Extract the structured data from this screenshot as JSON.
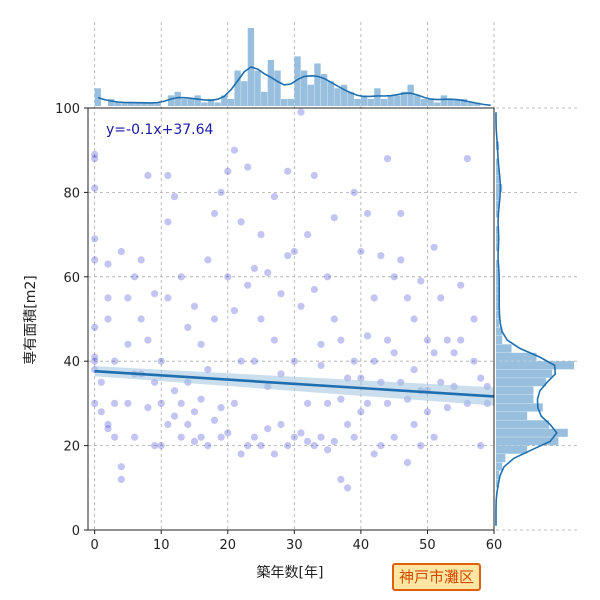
{
  "chart_data": {
    "type": "scatter",
    "xlabel": "築年数[年]",
    "ylabel": "専有面積[m2]",
    "xlim": [
      -1,
      60
    ],
    "ylim": [
      0,
      100
    ],
    "x_ticks": [
      0,
      10,
      20,
      30,
      40,
      50,
      60
    ],
    "y_ticks": [
      0,
      20,
      40,
      60,
      80,
      100
    ],
    "grid": true,
    "regression": {
      "slope": -0.1,
      "intercept": 37.64,
      "label": "y=-0.1x+37.64"
    },
    "badge_label": "神戸市灘区",
    "points": [
      [
        0,
        41
      ],
      [
        0,
        40
      ],
      [
        0,
        38
      ],
      [
        0,
        30
      ],
      [
        0,
        48
      ],
      [
        0,
        64
      ],
      [
        0,
        69
      ],
      [
        0,
        81
      ],
      [
        0,
        88
      ],
      [
        0,
        89
      ],
      [
        1,
        35
      ],
      [
        1,
        28
      ],
      [
        2,
        25
      ],
      [
        2,
        24
      ],
      [
        2,
        50
      ],
      [
        2,
        55
      ],
      [
        2,
        63
      ],
      [
        3,
        22
      ],
      [
        3,
        30
      ],
      [
        3,
        40
      ],
      [
        4,
        15
      ],
      [
        4,
        12
      ],
      [
        4,
        66
      ],
      [
        5,
        44
      ],
      [
        5,
        30
      ],
      [
        5,
        55
      ],
      [
        6,
        22
      ],
      [
        6,
        60
      ],
      [
        6,
        37
      ],
      [
        7,
        64
      ],
      [
        7,
        37
      ],
      [
        7,
        50
      ],
      [
        8,
        29
      ],
      [
        8,
        84
      ],
      [
        8,
        45
      ],
      [
        9,
        20
      ],
      [
        9,
        35
      ],
      [
        9,
        56
      ],
      [
        10,
        20
      ],
      [
        10,
        30
      ],
      [
        10,
        40
      ],
      [
        11,
        25
      ],
      [
        11,
        55
      ],
      [
        11,
        73
      ],
      [
        11,
        84
      ],
      [
        12,
        27
      ],
      [
        12,
        33
      ],
      [
        12,
        79
      ],
      [
        13,
        30
      ],
      [
        13,
        22
      ],
      [
        13,
        60
      ],
      [
        14,
        25
      ],
      [
        14,
        35
      ],
      [
        14,
        48
      ],
      [
        15,
        28
      ],
      [
        15,
        21
      ],
      [
        15,
        53
      ],
      [
        16,
        22
      ],
      [
        16,
        31
      ],
      [
        16,
        44
      ],
      [
        17,
        64
      ],
      [
        17,
        20
      ],
      [
        17,
        38
      ],
      [
        18,
        75
      ],
      [
        18,
        26
      ],
      [
        18,
        50
      ],
      [
        19,
        22
      ],
      [
        19,
        80
      ],
      [
        19,
        29
      ],
      [
        20,
        85
      ],
      [
        20,
        60
      ],
      [
        20,
        23
      ],
      [
        21,
        90
      ],
      [
        21,
        52
      ],
      [
        21,
        30
      ],
      [
        22,
        73
      ],
      [
        22,
        40
      ],
      [
        22,
        18
      ],
      [
        23,
        20
      ],
      [
        23,
        58
      ],
      [
        23,
        86
      ],
      [
        24,
        22
      ],
      [
        24,
        62
      ],
      [
        24,
        40
      ],
      [
        25,
        20
      ],
      [
        25,
        50
      ],
      [
        25,
        70
      ],
      [
        26,
        24
      ],
      [
        26,
        34
      ],
      [
        26,
        61
      ],
      [
        27,
        79
      ],
      [
        27,
        18
      ],
      [
        27,
        45
      ],
      [
        28,
        25
      ],
      [
        28,
        56
      ],
      [
        28,
        37
      ],
      [
        29,
        65
      ],
      [
        29,
        20
      ],
      [
        29,
        85
      ],
      [
        30,
        22
      ],
      [
        30,
        66
      ],
      [
        30,
        40
      ],
      [
        31,
        23
      ],
      [
        31,
        99
      ],
      [
        31,
        53
      ],
      [
        32,
        21
      ],
      [
        32,
        70
      ],
      [
        32,
        30
      ],
      [
        33,
        20
      ],
      [
        33,
        57
      ],
      [
        33,
        84
      ],
      [
        34,
        22
      ],
      [
        34,
        39
      ],
      [
        34,
        44
      ],
      [
        35,
        19
      ],
      [
        35,
        60
      ],
      [
        35,
        30
      ],
      [
        36,
        74
      ],
      [
        36,
        21
      ],
      [
        36,
        50
      ],
      [
        37,
        31
      ],
      [
        37,
        12
      ],
      [
        37,
        45
      ],
      [
        38,
        36
      ],
      [
        38,
        10
      ],
      [
        38,
        25
      ],
      [
        39,
        80
      ],
      [
        39,
        40
      ],
      [
        39,
        22
      ],
      [
        40,
        36
      ],
      [
        40,
        66
      ],
      [
        40,
        28
      ],
      [
        41,
        75
      ],
      [
        41,
        30
      ],
      [
        41,
        46
      ],
      [
        42,
        40
      ],
      [
        42,
        18
      ],
      [
        42,
        55
      ],
      [
        43,
        35
      ],
      [
        43,
        65
      ],
      [
        43,
        20
      ],
      [
        44,
        88
      ],
      [
        44,
        30
      ],
      [
        44,
        45
      ],
      [
        45,
        60
      ],
      [
        45,
        42
      ],
      [
        45,
        22
      ],
      [
        46,
        75
      ],
      [
        46,
        35
      ],
      [
        46,
        64
      ],
      [
        47,
        31
      ],
      [
        47,
        16
      ],
      [
        47,
        55
      ],
      [
        48,
        50
      ],
      [
        48,
        25
      ],
      [
        48,
        38
      ],
      [
        49,
        33
      ],
      [
        49,
        20
      ],
      [
        49,
        59
      ],
      [
        50,
        33
      ],
      [
        50,
        45
      ],
      [
        50,
        28
      ],
      [
        51,
        42
      ],
      [
        51,
        22
      ],
      [
        51,
        67
      ],
      [
        52,
        55
      ],
      [
        52,
        35
      ],
      [
        53,
        29
      ],
      [
        53,
        45
      ],
      [
        54,
        42
      ],
      [
        54,
        34
      ],
      [
        55,
        45
      ],
      [
        55,
        58
      ],
      [
        56,
        30
      ],
      [
        56,
        88
      ],
      [
        57,
        50
      ],
      [
        57,
        40
      ],
      [
        58,
        36
      ],
      [
        58,
        20
      ],
      [
        59,
        34
      ],
      [
        59,
        30
      ]
    ],
    "x_histogram": {
      "bin_width": 1,
      "edges_start": 0,
      "counts": [
        5,
        0,
        2,
        1,
        1,
        1,
        1,
        1,
        1,
        1,
        0,
        3,
        4,
        2,
        2,
        3,
        1,
        2,
        1,
        3,
        2,
        10,
        7,
        22,
        10,
        4,
        13,
        10,
        2,
        2,
        14,
        10,
        6,
        12,
        9,
        7,
        5,
        6,
        4,
        2,
        3,
        2,
        5,
        2,
        3,
        3,
        4,
        6,
        3,
        2,
        2,
        1,
        3,
        2,
        2,
        2,
        1,
        1,
        0,
        0
      ]
    },
    "y_histogram": {
      "bin_width": 2,
      "edges_start": 0,
      "counts": [
        0,
        0,
        0,
        0,
        0,
        1,
        1,
        2,
        3,
        10,
        20,
        23,
        17,
        10,
        15,
        12,
        12,
        16,
        18,
        25,
        13,
        5,
        2,
        2,
        1,
        1,
        1,
        1,
        1,
        1,
        1,
        1,
        0,
        1,
        1,
        1,
        0,
        1,
        1,
        1,
        2,
        1,
        1,
        1,
        0,
        1,
        0,
        0,
        0,
        0
      ]
    }
  }
}
